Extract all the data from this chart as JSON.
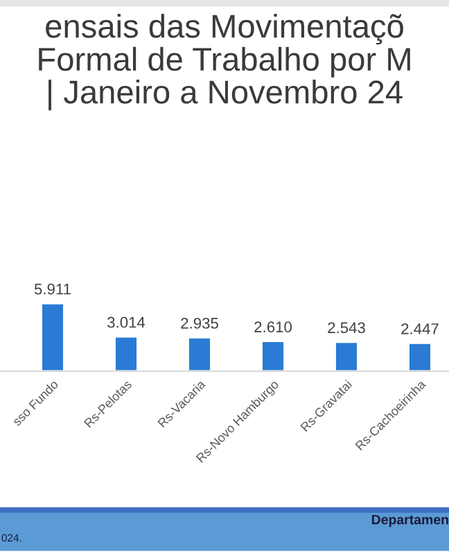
{
  "chart_data": {
    "type": "bar",
    "title": "ensais das Movimentaçõ\nFormal de Trabalho por M\n| Janeiro a Novembro 24",
    "categories": [
      "sso Fundo",
      "Rs-Pelotas",
      "Rs-Vacaria",
      "Rs-Novo Hamburgo",
      "Rs-Gravatai",
      "Rs-Cachoeirinha"
    ],
    "values": [
      5911,
      3014,
      2935,
      2610,
      2543,
      2447
    ],
    "value_labels": [
      "5.911",
      "3.014",
      "2.935",
      "2.610",
      "2.543",
      "2.447"
    ],
    "color": "#2a7bd4",
    "annotations": [
      "Departamen",
      "024."
    ]
  }
}
